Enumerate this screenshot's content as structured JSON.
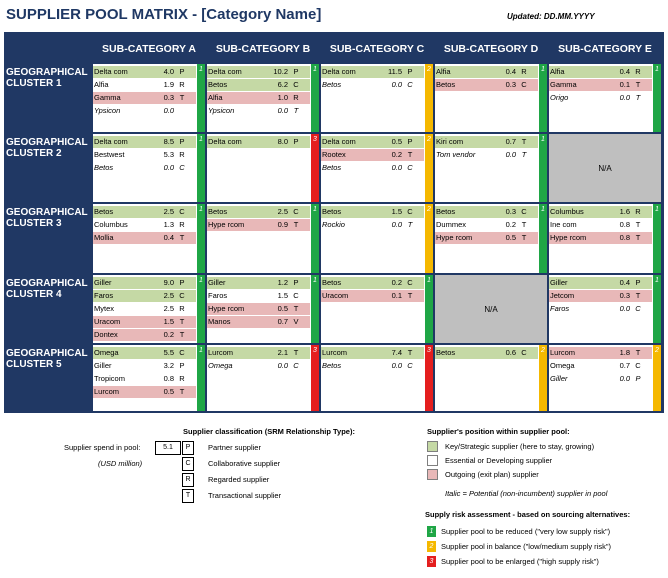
{
  "title": "SUPPLIER POOL MATRIX - [Category Name]",
  "updated": "Updated:  DD.MM.YYYY",
  "columns": [
    "SUB-CATEGORY A",
    "SUB-CATEGORY B",
    "SUB-CATEGORY C",
    "SUB-CATEGORY D",
    "SUB-CATEGORY E"
  ],
  "rows": [
    "GEOGRAPHICAL CLUSTER 1",
    "GEOGRAPHICAL CLUSTER 2",
    "GEOGRAPHICAL CLUSTER 3",
    "GEOGRAPHICAL CLUSTER 4",
    "GEOGRAPHICAL CLUSTER 5"
  ],
  "cells": [
    [
      {
        "risk": 1,
        "suppliers": [
          {
            "name": "Delta com",
            "spend": "4.0",
            "type": "P",
            "position": "key"
          },
          {
            "name": "Alfia",
            "spend": "1.9",
            "type": "R",
            "position": "essential"
          },
          {
            "name": "Gamma",
            "spend": "0.3",
            "type": "T",
            "position": "outgoing"
          },
          {
            "name": "Ypsicon",
            "spend": "0.0",
            "type": "",
            "position": "potential"
          }
        ]
      },
      {
        "risk": 1,
        "suppliers": [
          {
            "name": "Delta com",
            "spend": "10.2",
            "type": "P",
            "position": "key"
          },
          {
            "name": "Betos",
            "spend": "6.2",
            "type": "C",
            "position": "key"
          },
          {
            "name": "Alfia",
            "spend": "1.0",
            "type": "R",
            "position": "outgoing"
          },
          {
            "name": "Ypsicon",
            "spend": "0.0",
            "type": "T",
            "position": "potential"
          }
        ]
      },
      {
        "risk": 2,
        "suppliers": [
          {
            "name": "Delta com",
            "spend": "11.5",
            "type": "P",
            "position": "key"
          },
          {
            "name": "Betos",
            "spend": "0.0",
            "type": "C",
            "position": "potential"
          }
        ]
      },
      {
        "risk": 1,
        "suppliers": [
          {
            "name": "Alfia",
            "spend": "0.4",
            "type": "R",
            "position": "key"
          },
          {
            "name": "Betos",
            "spend": "0.3",
            "type": "C",
            "position": "outgoing"
          }
        ]
      },
      {
        "risk": 1,
        "suppliers": [
          {
            "name": "Alfia",
            "spend": "0.4",
            "type": "R",
            "position": "key"
          },
          {
            "name": "Gamma",
            "spend": "0.1",
            "type": "T",
            "position": "outgoing"
          },
          {
            "name": "Origo",
            "spend": "0.0",
            "type": "T",
            "position": "potential"
          }
        ]
      }
    ],
    [
      {
        "risk": 1,
        "suppliers": [
          {
            "name": "Delta com",
            "spend": "8.5",
            "type": "P",
            "position": "key"
          },
          {
            "name": "Bestwest",
            "spend": "5.3",
            "type": "R",
            "position": "essential"
          },
          {
            "name": "Betos",
            "spend": "0.0",
            "type": "C",
            "position": "potential"
          }
        ]
      },
      {
        "risk": 3,
        "suppliers": [
          {
            "name": "Delta com",
            "spend": "8.0",
            "type": "P",
            "position": "key"
          }
        ]
      },
      {
        "risk": 2,
        "suppliers": [
          {
            "name": "Delta com",
            "spend": "0.5",
            "type": "P",
            "position": "key"
          },
          {
            "name": "Rootex",
            "spend": "0.2",
            "type": "T",
            "position": "outgoing"
          },
          {
            "name": "Betos",
            "spend": "0.0",
            "type": "C",
            "position": "potential"
          }
        ]
      },
      {
        "risk": 1,
        "suppliers": [
          {
            "name": "Kiri com",
            "spend": "0.7",
            "type": "T",
            "position": "key"
          },
          {
            "name": "Tom vendor",
            "spend": "0.0",
            "type": "T",
            "position": "potential"
          }
        ]
      },
      {
        "na": "N/A"
      }
    ],
    [
      {
        "risk": 1,
        "suppliers": [
          {
            "name": "Betos",
            "spend": "2.5",
            "type": "C",
            "position": "key"
          },
          {
            "name": "Columbus",
            "spend": "1.3",
            "type": "R",
            "position": "essential"
          },
          {
            "name": "Mollia",
            "spend": "0.4",
            "type": "T",
            "position": "outgoing"
          }
        ]
      },
      {
        "risk": 1,
        "suppliers": [
          {
            "name": "Betos",
            "spend": "2.5",
            "type": "C",
            "position": "key"
          },
          {
            "name": "Hype rcom",
            "spend": "0.9",
            "type": "T",
            "position": "outgoing"
          }
        ]
      },
      {
        "risk": 2,
        "suppliers": [
          {
            "name": "Betos",
            "spend": "1.5",
            "type": "C",
            "position": "key"
          },
          {
            "name": "Rockio",
            "spend": "0.0",
            "type": "T",
            "position": "potential"
          }
        ]
      },
      {
        "risk": 1,
        "suppliers": [
          {
            "name": "Betos",
            "spend": "0.3",
            "type": "C",
            "position": "key"
          },
          {
            "name": "Dummex",
            "spend": "0.2",
            "type": "T",
            "position": "essential"
          },
          {
            "name": "Hype rcom",
            "spend": "0.5",
            "type": "T",
            "position": "outgoing"
          }
        ]
      },
      {
        "risk": 1,
        "suppliers": [
          {
            "name": "Columbus",
            "spend": "1.6",
            "type": "R",
            "position": "key"
          },
          {
            "name": "Ine com",
            "spend": "0.8",
            "type": "T",
            "position": "essential"
          },
          {
            "name": "Hype rcom",
            "spend": "0.8",
            "type": "T",
            "position": "outgoing"
          }
        ]
      }
    ],
    [
      {
        "risk": 1,
        "suppliers": [
          {
            "name": "Giller",
            "spend": "9.0",
            "type": "P",
            "position": "key"
          },
          {
            "name": "Faros",
            "spend": "2.5",
            "type": "C",
            "position": "key"
          },
          {
            "name": "Mytex",
            "spend": "2.5",
            "type": "R",
            "position": "essential"
          },
          {
            "name": "Uracom",
            "spend": "1.5",
            "type": "T",
            "position": "outgoing"
          },
          {
            "name": "Dontex",
            "spend": "0.2",
            "type": "T",
            "position": "outgoing"
          }
        ]
      },
      {
        "risk": 1,
        "suppliers": [
          {
            "name": "Giller",
            "spend": "1.2",
            "type": "P",
            "position": "key"
          },
          {
            "name": "Faros",
            "spend": "1.5",
            "type": "C",
            "position": "essential"
          },
          {
            "name": "Hype rcom",
            "spend": "0.5",
            "type": "T",
            "position": "outgoing"
          },
          {
            "name": "Manos",
            "spend": "0.7",
            "type": "V",
            "position": "outgoing"
          }
        ]
      },
      {
        "risk": 1,
        "suppliers": [
          {
            "name": "Betos",
            "spend": "0.2",
            "type": "C",
            "position": "key"
          },
          {
            "name": "Uracom",
            "spend": "0.1",
            "type": "T",
            "position": "outgoing"
          }
        ]
      },
      {
        "na": "N/A"
      },
      {
        "risk": 1,
        "suppliers": [
          {
            "name": "Giller",
            "spend": "0.4",
            "type": "P",
            "position": "key"
          },
          {
            "name": "Jetcom",
            "spend": "0.3",
            "type": "T",
            "position": "outgoing"
          },
          {
            "name": "Faros",
            "spend": "0.0",
            "type": "C",
            "position": "potential"
          }
        ]
      }
    ],
    [
      {
        "risk": 1,
        "suppliers": [
          {
            "name": "Omega",
            "spend": "5.5",
            "type": "C",
            "position": "key"
          },
          {
            "name": "Giller",
            "spend": "3.2",
            "type": "P",
            "position": "essential"
          },
          {
            "name": "Tropicom",
            "spend": "0.8",
            "type": "R",
            "position": "essential"
          },
          {
            "name": "Lurcom",
            "spend": "0.5",
            "type": "T",
            "position": "outgoing"
          }
        ]
      },
      {
        "risk": 3,
        "suppliers": [
          {
            "name": "Lurcom",
            "spend": "2.1",
            "type": "T",
            "position": "key"
          },
          {
            "name": "Omega",
            "spend": "0.0",
            "type": "C",
            "position": "potential"
          }
        ]
      },
      {
        "risk": 3,
        "suppliers": [
          {
            "name": "Lurcom",
            "spend": "7.4",
            "type": "T",
            "position": "key"
          },
          {
            "name": "Betos",
            "spend": "0.0",
            "type": "C",
            "position": "potential"
          }
        ]
      },
      {
        "risk": 2,
        "suppliers": [
          {
            "name": "Betos",
            "spend": "0.6",
            "type": "C",
            "position": "key"
          }
        ]
      },
      {
        "risk": 2,
        "suppliers": [
          {
            "name": "Lurcom",
            "spend": "1.8",
            "type": "T",
            "position": "outgoing"
          },
          {
            "name": "Omega",
            "spend": "0.7",
            "type": "C",
            "position": "essential"
          },
          {
            "name": "Giller",
            "spend": "0.0",
            "type": "P",
            "position": "potential"
          }
        ]
      }
    ]
  ],
  "legend": {
    "classification_title": "Supplier classification (SRM Relationship Type):",
    "spend_label": "Supplier spend in pool:",
    "spend_unit": "(USD million)",
    "example_value": "5.1",
    "types": [
      {
        "code": "P",
        "label": "Partner supplier"
      },
      {
        "code": "C",
        "label": "Collaborative supplier"
      },
      {
        "code": "R",
        "label": "Regarded supplier"
      },
      {
        "code": "T",
        "label": "Transactional supplier"
      }
    ],
    "position_title": "Supplier's position within supplier pool:",
    "positions": [
      {
        "label": "Key/Strategic supplier (here to stay, growing)",
        "color": "#C5D9A5"
      },
      {
        "label": "Essential or Developing supplier",
        "color": "#FFFFFF"
      },
      {
        "label": "Outgoing (exit plan) supplier",
        "color": "#E8B8B8"
      }
    ],
    "potential_note": "Italic = Potential (non-incumbent) supplier in pool",
    "risk_title": "Supply risk assessment - based on sourcing alternatives:",
    "risks": [
      {
        "code": "1",
        "label": "Supplier pool to be reduced (\"very low supply risk\")",
        "color": "#1FA646"
      },
      {
        "code": "2",
        "label": "Supplier pool in balance (\"low/medium supply risk\")",
        "color": "#F5B800"
      },
      {
        "code": "3",
        "label": "Supplier pool to be enlarged (\"high supply risk\")",
        "color": "#E41E1E"
      }
    ]
  }
}
